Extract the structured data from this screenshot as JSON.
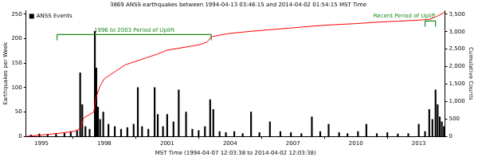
{
  "chart_data": {
    "type": "bar",
    "title": "3869 ANSS earthquakes between 1994-04-13 03:46:15 and 2014-04-02 01:54:15 MST Time",
    "x_label": "MST Time (1994-04-07 12:03:38 to 2014-04-02 12:03:38)",
    "y_label": "Earthquakes per Week",
    "y2_label": "Cumulative Counts",
    "xlim": [
      1994.27,
      2014.25
    ],
    "xticks": [
      1995,
      1998,
      2001,
      2004,
      2007,
      2010,
      2013
    ],
    "ylim": [
      0,
      257
    ],
    "yticks": [
      0,
      50,
      100,
      150,
      200,
      250
    ],
    "y2lim": [
      0,
      3600
    ],
    "y2ticks": [
      0,
      500,
      {
        "value": 1000,
        "label": "1,000"
      },
      {
        "value": 1500,
        "label": "1,500"
      },
      {
        "value": 2000,
        "label": "2,000"
      },
      {
        "value": 2500,
        "label": "2,500"
      },
      {
        "value": 3000,
        "label": "3,000"
      },
      {
        "value": 3500,
        "label": "3,500"
      }
    ],
    "grid": false,
    "legend": "upper left",
    "series": [
      {
        "name": "ANSS Events",
        "type": "bar",
        "color": "#000000",
        "x": [
          1994.5,
          1994.9,
          1995.3,
          1995.7,
          1996.1,
          1996.4,
          1996.7,
          1996.85,
          1996.95,
          1997.1,
          1997.3,
          1997.55,
          1997.62,
          1997.7,
          1997.8,
          1997.95,
          1998.2,
          1998.5,
          1998.8,
          1999.1,
          1999.4,
          1999.6,
          1999.8,
          2000.1,
          2000.4,
          2000.55,
          2000.8,
          2001.0,
          2001.3,
          2001.55,
          2001.9,
          2002.2,
          2002.5,
          2002.8,
          2003.05,
          2003.2,
          2003.5,
          2003.8,
          2004.2,
          2004.6,
          2005.0,
          2005.4,
          2005.9,
          2006.4,
          2006.9,
          2007.4,
          2007.9,
          2008.3,
          2008.7,
          2009.2,
          2009.6,
          2010.1,
          2010.5,
          2011.0,
          2011.5,
          2012.0,
          2012.5,
          2013.0,
          2013.3,
          2013.5,
          2013.65,
          2013.8,
          2013.9,
          2014.0,
          2014.1,
          2014.2
        ],
        "values": [
          3,
          5,
          4,
          6,
          8,
          10,
          12,
          130,
          65,
          20,
          15,
          215,
          140,
          60,
          35,
          50,
          25,
          20,
          15,
          18,
          25,
          100,
          20,
          15,
          100,
          45,
          20,
          45,
          30,
          95,
          50,
          15,
          12,
          20,
          75,
          55,
          10,
          8,
          10,
          6,
          50,
          8,
          30,
          10,
          8,
          6,
          40,
          10,
          25,
          8,
          6,
          10,
          25,
          6,
          8,
          5,
          6,
          25,
          10,
          55,
          35,
          95,
          65,
          40,
          30,
          20
        ]
      },
      {
        "type": "line",
        "color": "#ff0000",
        "axis": "y2",
        "x": [
          1994.27,
          1995.0,
          1996.0,
          1996.6,
          1996.9,
          1997.0,
          1997.5,
          1997.6,
          1997.8,
          1998.0,
          1998.5,
          1999.0,
          1999.5,
          2000.0,
          2000.5,
          2000.8,
          2001.0,
          2001.5,
          2002.0,
          2002.5,
          2002.9,
          2003.1,
          2003.5,
          2004.0,
          2005.0,
          2006.0,
          2007.0,
          2008.0,
          2009.0,
          2010.0,
          2011.0,
          2012.0,
          2013.0,
          2013.5,
          2013.8,
          2014.0,
          2014.25
        ],
        "values": [
          0,
          40,
          100,
          150,
          250,
          520,
          700,
          1100,
          1450,
          1650,
          1850,
          2050,
          2150,
          2250,
          2350,
          2420,
          2470,
          2520,
          2570,
          2620,
          2700,
          2850,
          2900,
          2950,
          3010,
          3060,
          3110,
          3160,
          3200,
          3230,
          3270,
          3300,
          3330,
          3350,
          3420,
          3480,
          3560
        ]
      }
    ],
    "annotations": [
      {
        "text": "1996 to 2003 Period of Uplift",
        "x": [
          1995.75,
          2003.1
        ],
        "color": "#1a8a1a"
      },
      {
        "text": "Recent Period of Uplift",
        "x": [
          2013.3,
          2013.8
        ],
        "color": "#1a8a1a"
      }
    ]
  }
}
